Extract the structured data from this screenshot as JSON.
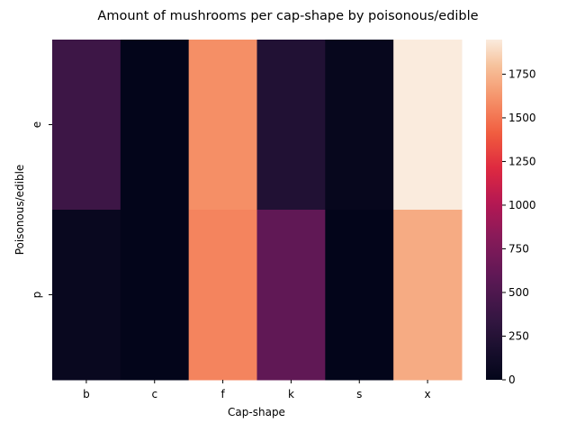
{
  "chart_data": {
    "type": "heatmap",
    "title": "Amount of mushrooms per cap-shape by poisonous/edible",
    "xlabel": "Cap-shape",
    "ylabel": "Poisonous/edible",
    "x_categories": [
      "b",
      "c",
      "f",
      "k",
      "s",
      "x"
    ],
    "y_categories": [
      "e",
      "p"
    ],
    "values": [
      [
        404,
        0,
        1596,
        228,
        32,
        1948
      ],
      [
        48,
        4,
        1556,
        600,
        0,
        1708
      ]
    ],
    "colorbar": {
      "min": 0,
      "max": 1948,
      "ticks": [
        0,
        250,
        500,
        750,
        1000,
        1250,
        1500,
        1750
      ]
    },
    "colormap": "rocket",
    "grid": false,
    "legend": "none"
  }
}
